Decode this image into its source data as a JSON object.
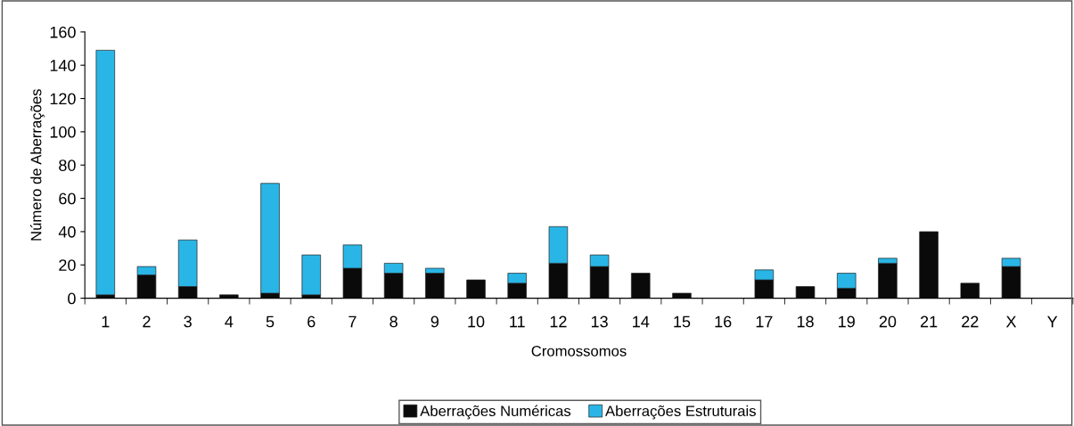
{
  "chart_data": {
    "type": "bar",
    "stacked": true,
    "xlabel": "Cromossomos",
    "ylabel": "Número de Aberrações",
    "categories": [
      "1",
      "2",
      "3",
      "4",
      "5",
      "6",
      "7",
      "8",
      "9",
      "10",
      "11",
      "12",
      "13",
      "14",
      "15",
      "16",
      "17",
      "18",
      "19",
      "20",
      "21",
      "22",
      "X",
      "Y"
    ],
    "series": [
      {
        "name": "Aberrações Numéricas",
        "color": "#0a0a0a",
        "values": [
          2,
          14,
          7,
          2,
          3,
          2,
          18,
          15,
          15,
          11,
          9,
          21,
          19,
          15,
          3,
          0,
          11,
          7,
          6,
          21,
          40,
          9,
          19,
          0
        ]
      },
      {
        "name": "Aberrações Estruturais",
        "color": "#29b6e6",
        "values": [
          147,
          5,
          28,
          0,
          66,
          24,
          14,
          6,
          3,
          0,
          6,
          22,
          7,
          0,
          0,
          0,
          6,
          0,
          9,
          3,
          0,
          0,
          5,
          0
        ]
      }
    ],
    "ylim": [
      0,
      160
    ],
    "yticks": [
      0,
      20,
      40,
      60,
      80,
      100,
      120,
      140,
      160
    ],
    "grid": false,
    "legend": "bottom"
  }
}
